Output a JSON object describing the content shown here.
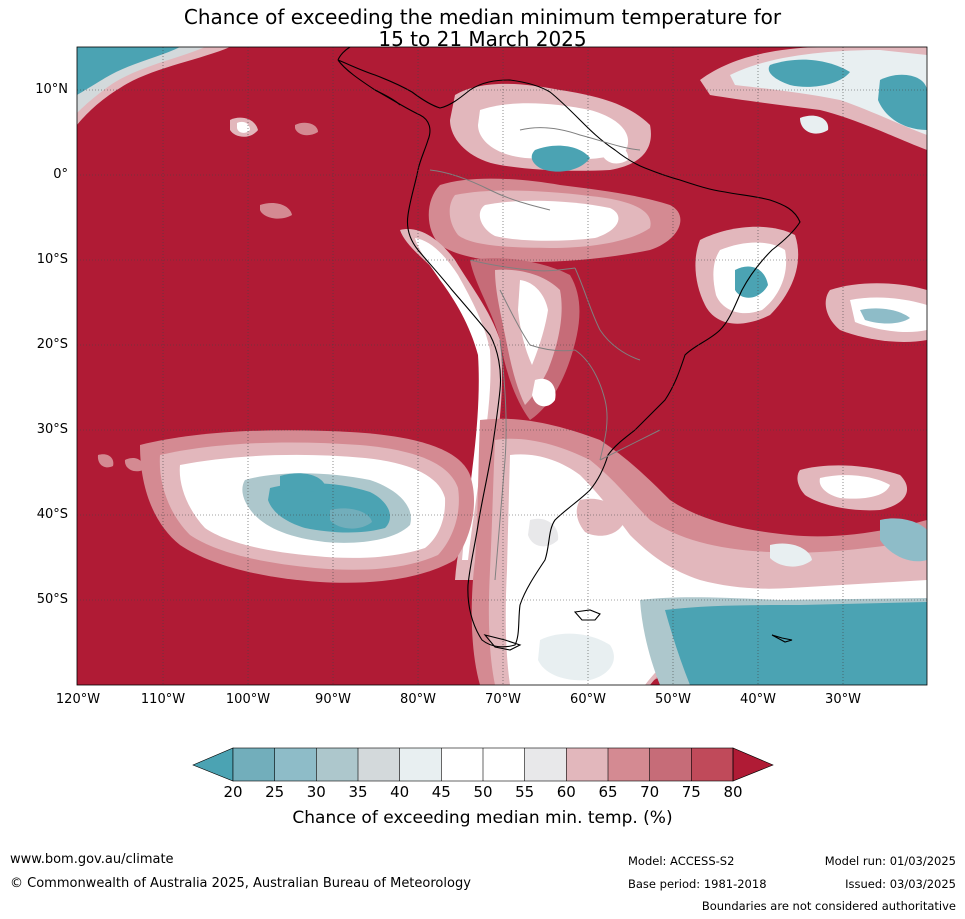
{
  "title": {
    "line1": "Chance of exceeding the median minimum temperature for",
    "line2": "15 to 21 March 2025"
  },
  "map": {
    "region": "South America and surrounding oceans",
    "lat_ticks": [
      "10°N",
      "0°",
      "10°S",
      "20°S",
      "30°S",
      "40°S",
      "50°S"
    ],
    "lon_ticks": [
      "120°W",
      "110°W",
      "100°W",
      "90°W",
      "80°W",
      "70°W",
      "60°W",
      "50°W",
      "40°W",
      "30°W"
    ],
    "colors": {
      "p20": "#4ba3b3",
      "p25": "#72aebb",
      "p30": "#8ebcc8",
      "p35": "#adc7cc",
      "p40": "#d3d9db",
      "p45": "#e8eff1",
      "p50": "#ffffff",
      "p55": "#ffffff",
      "p60": "#e8e8ea",
      "p65": "#e2b7bc",
      "p70": "#d48a92",
      "p75": "#c66c78",
      "p80": "#c04a5a",
      "over80": "#b01b35"
    }
  },
  "colorbar": {
    "labels": [
      "20",
      "25",
      "30",
      "35",
      "40",
      "45",
      "50",
      "55",
      "60",
      "65",
      "70",
      "75",
      "80"
    ],
    "title": "Chance of exceeding median min. temp. (%)"
  },
  "footer": {
    "website": "www.bom.gov.au/climate",
    "copyright": "© Commonwealth of Australia 2025, Australian Bureau of Meteorology",
    "model": "Model: ACCESS-S2",
    "model_run": "Model run: 01/03/2025",
    "base_period": "Base period: 1981-2018",
    "issued": "Issued: 03/03/2025",
    "boundaries_note": "Boundaries are not considered authoritative"
  }
}
